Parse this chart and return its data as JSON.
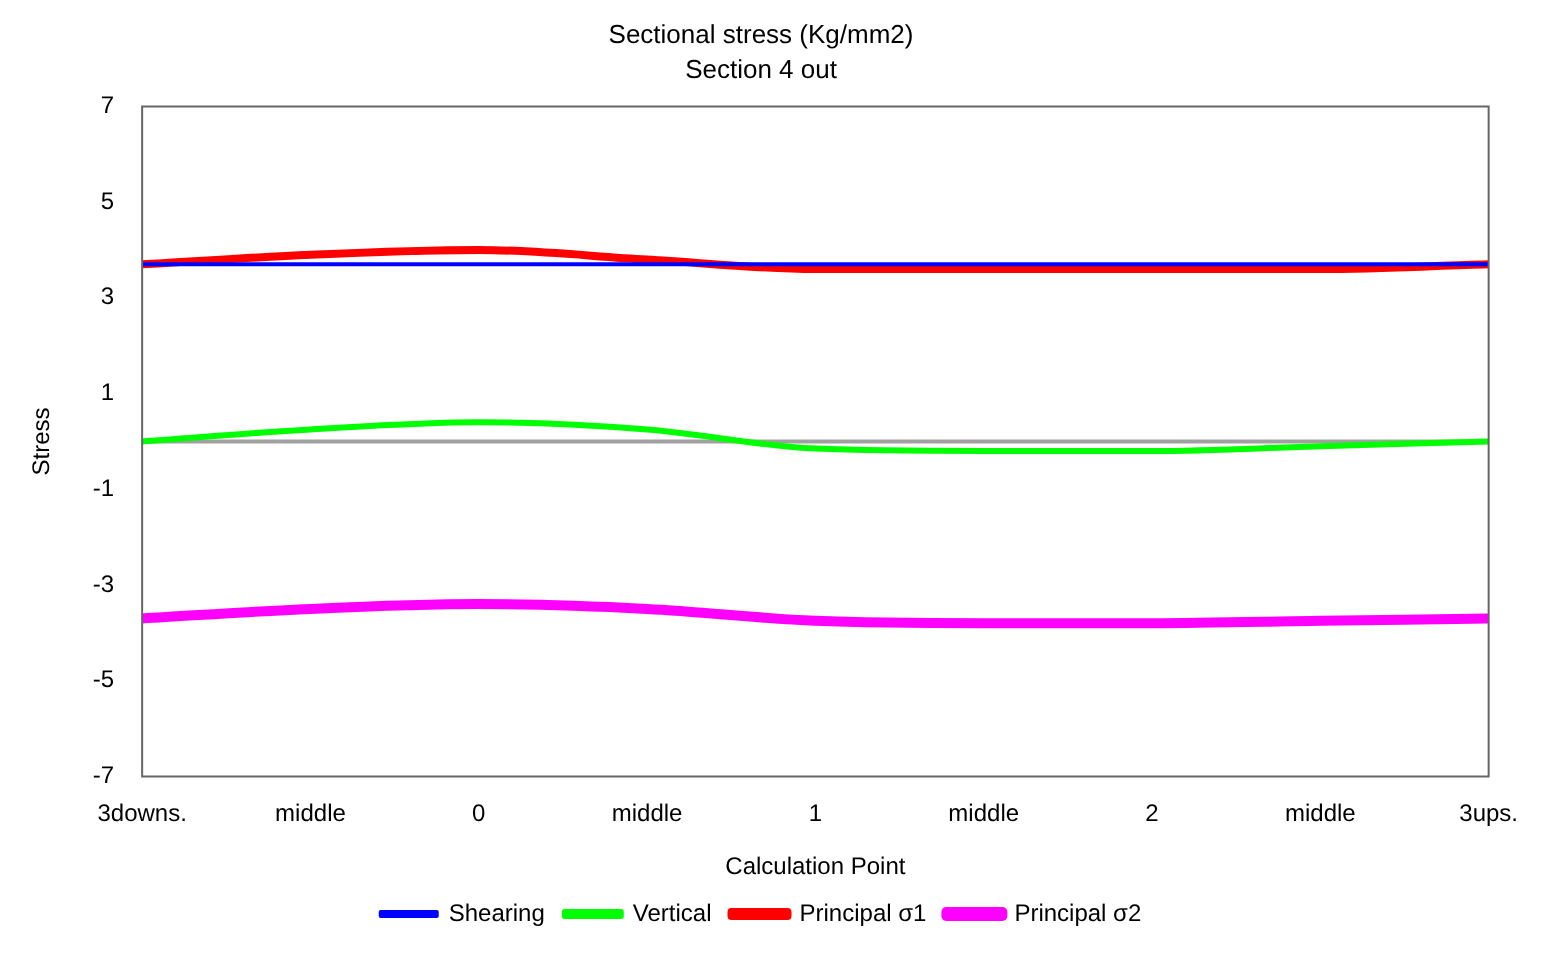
{
  "chart_data": {
    "type": "line",
    "title": "Sectional stress (Kg/mm2)",
    "subtitle": "Section 4 out",
    "xlabel": "Calculation Point",
    "ylabel": "Stress",
    "categories": [
      "3downs.",
      "middle",
      "0",
      "middle",
      "1",
      "middle",
      "2",
      "middle",
      "3ups."
    ],
    "series": [
      {
        "name": "Shearing",
        "color": "#0000ff",
        "values": [
          3.7,
          3.7,
          3.7,
          3.7,
          3.7,
          3.7,
          3.7,
          3.7,
          3.7
        ]
      },
      {
        "name": "Vertical",
        "color": "#00ff00",
        "values": [
          0,
          0.25,
          0.4,
          0.25,
          -0.15,
          -0.2,
          -0.2,
          -0.1,
          0
        ]
      },
      {
        "name": "Principal σ1",
        "color": "#ff0000",
        "values": [
          3.7,
          3.9,
          4,
          3.8,
          3.6,
          3.6,
          3.6,
          3.6,
          3.7
        ]
      },
      {
        "name": "Principal σ2",
        "color": "#ff00ff",
        "values": [
          -3.7,
          -3.5,
          -3.4,
          -3.5,
          -3.75,
          -3.8,
          -3.8,
          -3.75,
          -3.7
        ]
      }
    ],
    "ylim": [
      -7,
      7
    ],
    "yticks": [
      -7,
      -5,
      -3,
      -1,
      1,
      3,
      5,
      7
    ],
    "grid": false,
    "legend": "bottom",
    "marker": "none",
    "line_style": "solid",
    "ref_lines": [
      {
        "axis": "y",
        "value": 0,
        "color": "#a0a0a0"
      }
    ]
  }
}
